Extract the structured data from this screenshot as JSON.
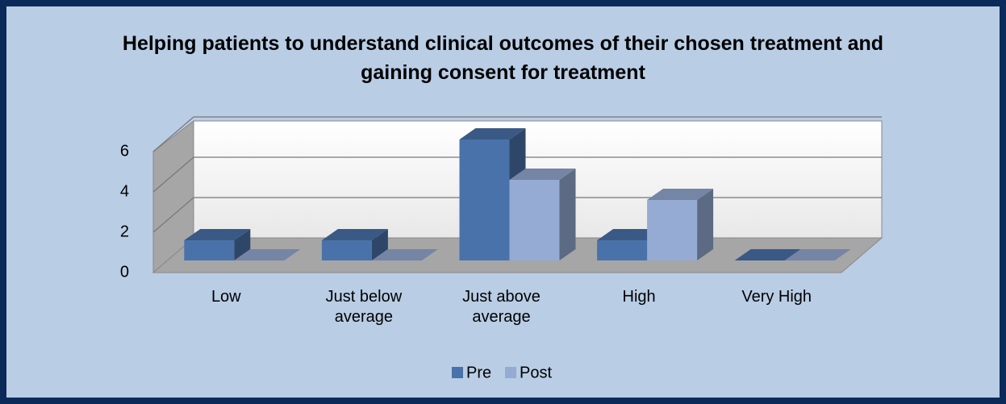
{
  "chart_data": {
    "type": "bar3d",
    "title": "Helping patients to understand clinical outcomes of their chosen treatment and gaining consent for treatment",
    "categories": [
      "Low",
      "Just below average",
      "Just above average",
      "High",
      "Very High"
    ],
    "series": [
      {
        "name": "Pre",
        "color": "#4a72aa",
        "values": [
          1,
          1,
          6,
          1,
          0
        ]
      },
      {
        "name": "Post",
        "color": "#95abd4",
        "values": [
          0,
          0,
          4,
          3,
          0
        ]
      }
    ],
    "ylim": [
      0,
      6
    ],
    "yticks": [
      0,
      2,
      4,
      6
    ],
    "grid": true,
    "legend": "bottom"
  }
}
